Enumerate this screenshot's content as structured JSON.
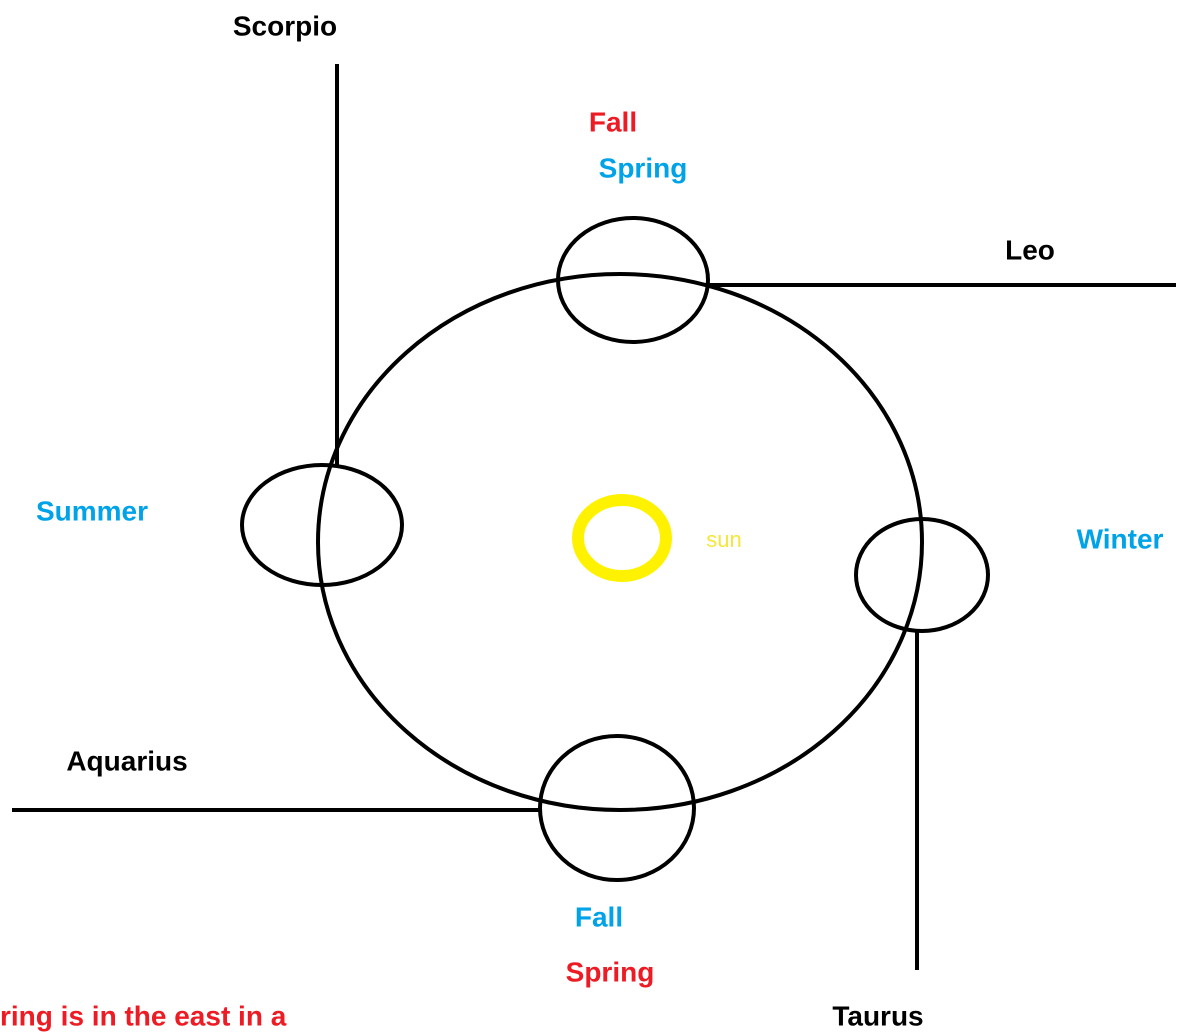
{
  "constellations": {
    "top_left": "Scorpio",
    "top_right": "Leo",
    "bottom_left": "Aquarius",
    "bottom_right": "Taurus"
  },
  "top_position": {
    "red": "Fall",
    "blue": "Spring"
  },
  "left_position": {
    "blue": "Summer"
  },
  "right_position": {
    "blue": "Winter"
  },
  "bottom_position": {
    "blue": "Fall",
    "red": "Spring"
  },
  "center": {
    "label": "sun"
  },
  "note": "ring is in the east in a"
}
